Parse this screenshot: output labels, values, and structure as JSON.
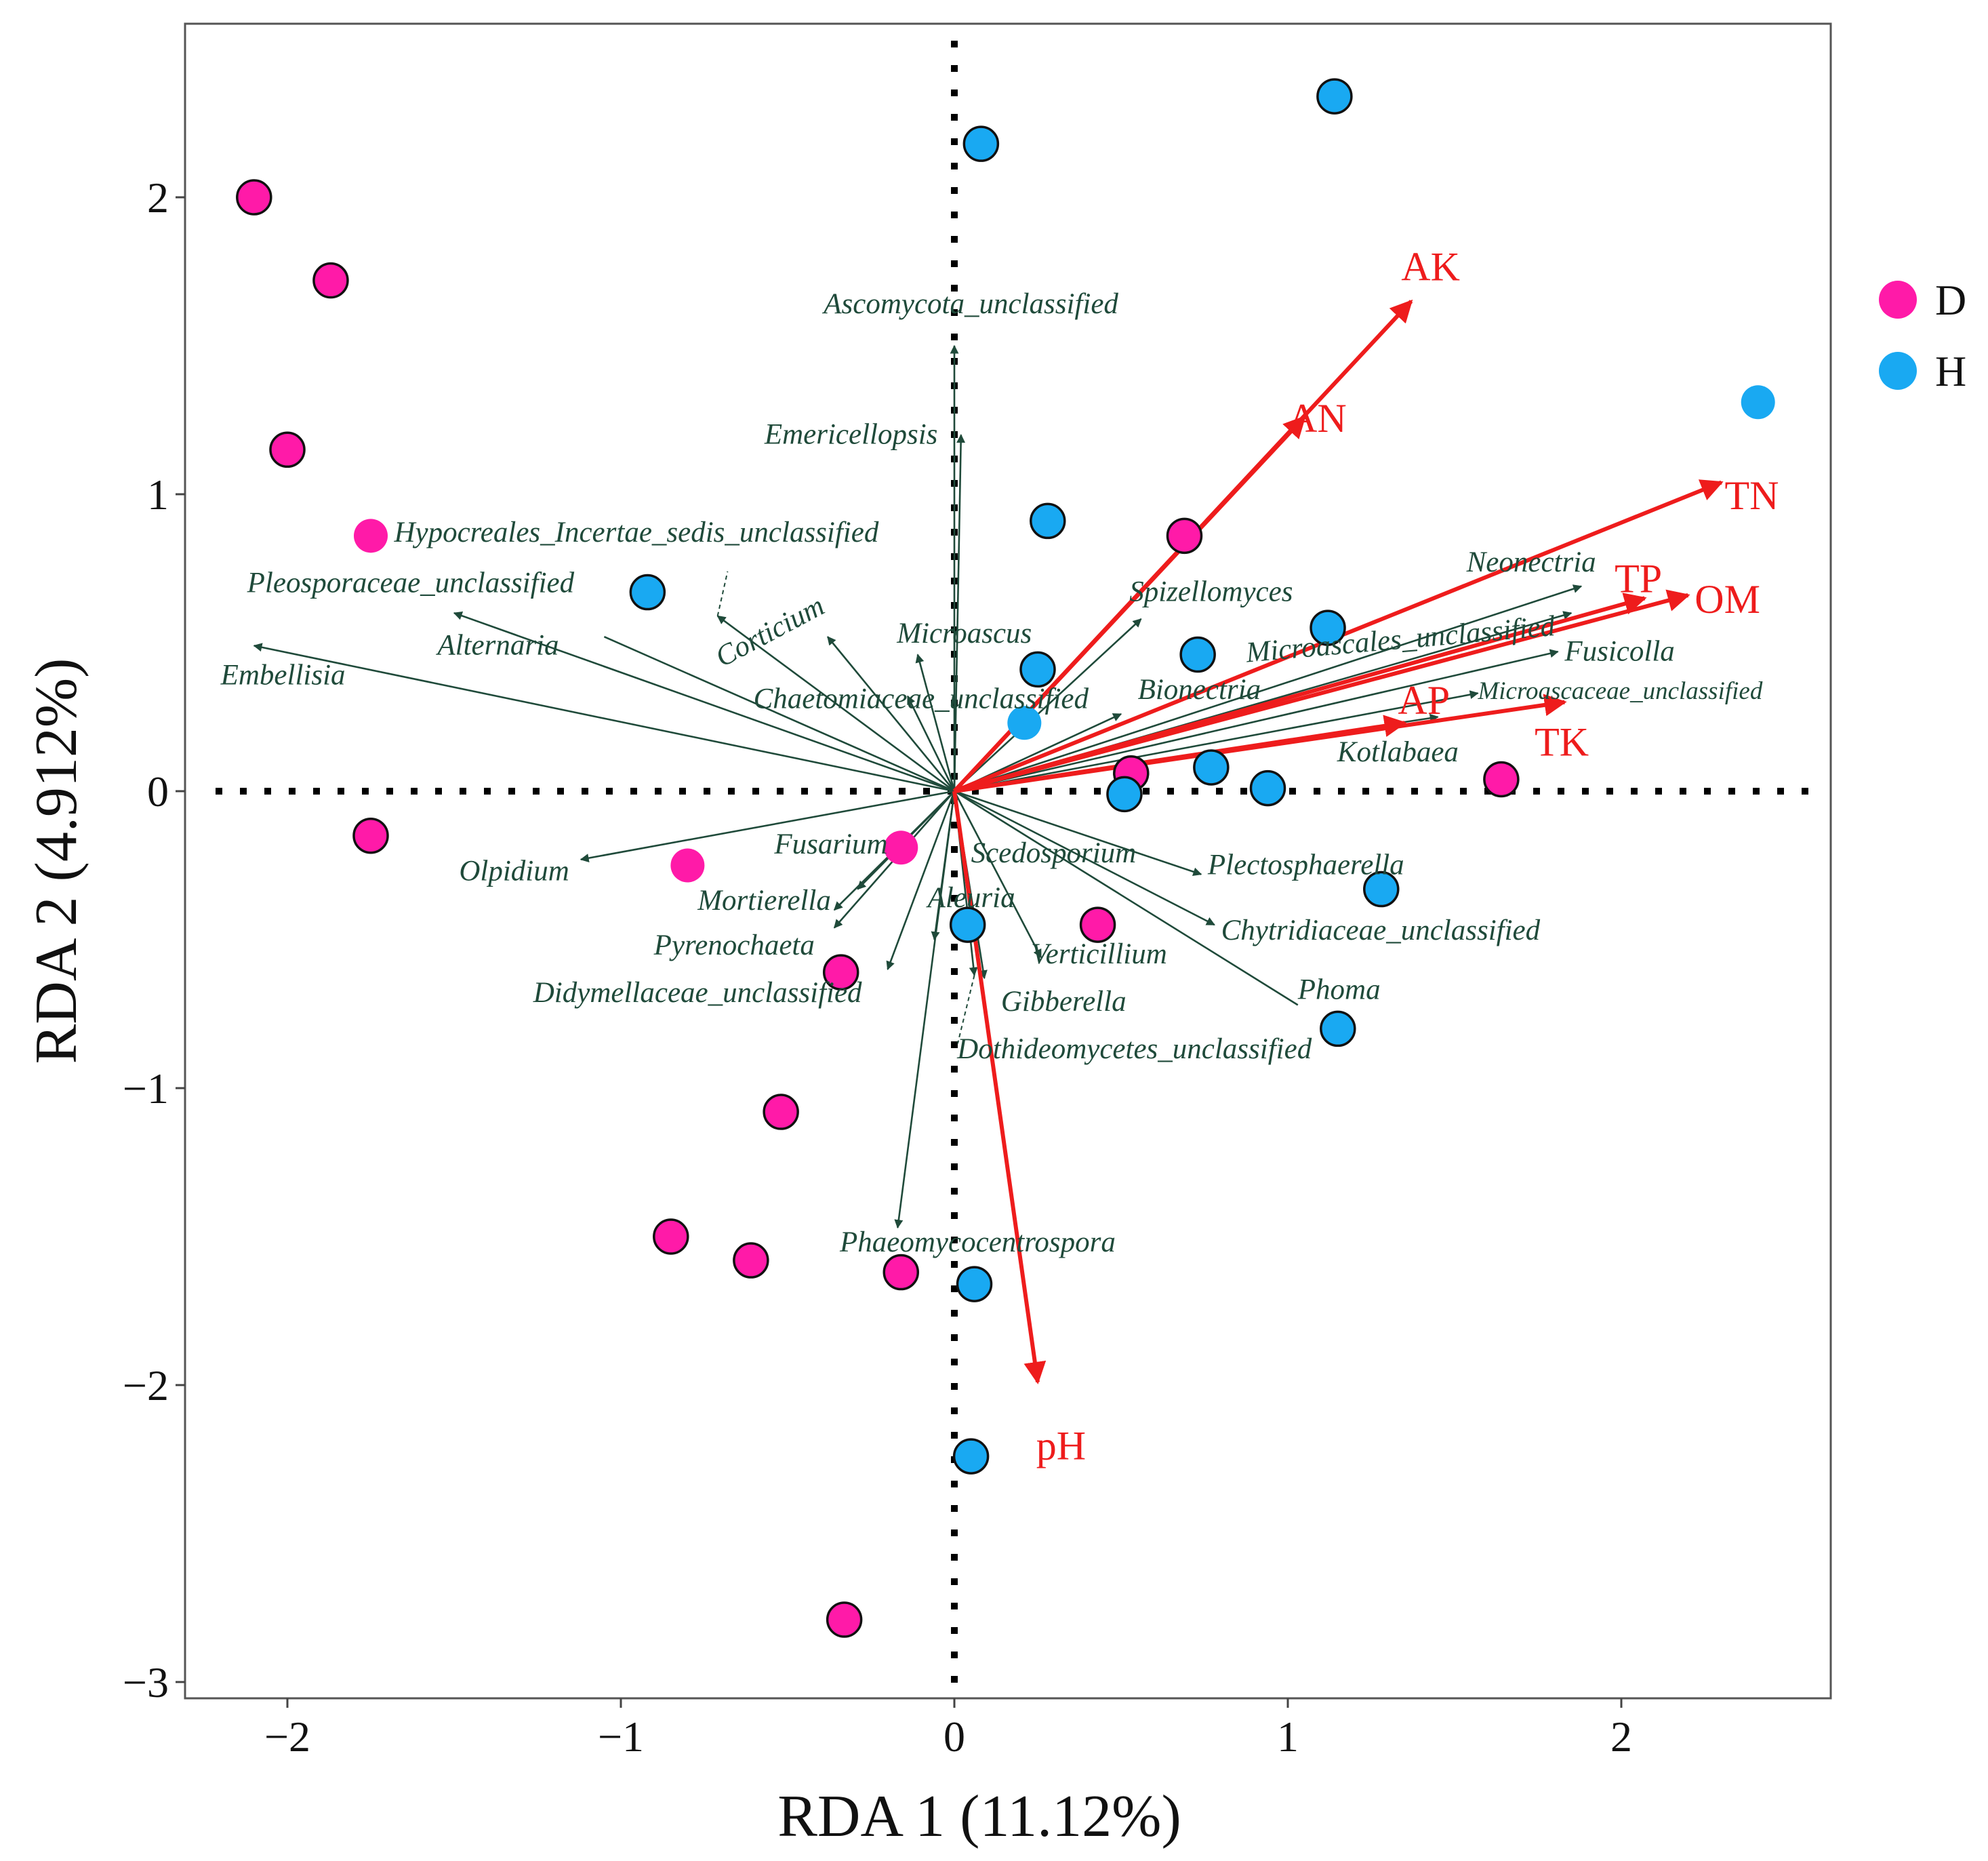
{
  "chart_data": {
    "type": "scatter",
    "subtype": "rda-biplot",
    "title": "",
    "xlabel": "RDA 1 (11.12%)",
    "ylabel": "RDA 2 (4.912%)",
    "xlim": [
      -2.32,
      2.6
    ],
    "ylim": [
      -3.05,
      2.6
    ],
    "xticks": [
      -2,
      -1,
      0,
      1,
      2
    ],
    "yticks": [
      -3,
      -2,
      -1,
      0,
      1,
      2
    ],
    "xtick_labels": [
      "−2",
      "−1",
      "0",
      "1",
      "2"
    ],
    "ytick_labels": [
      "−3",
      "−2",
      "−1",
      "0",
      "1",
      "2"
    ],
    "legend": [
      {
        "label": "D",
        "color": "#ff1aa8"
      },
      {
        "label": "H",
        "color": "#19a9f2"
      }
    ],
    "series": [
      {
        "name": "D",
        "color": "#ff1aa8",
        "points": [
          {
            "x": -2.1,
            "y": 2.0,
            "outlined": true
          },
          {
            "x": -1.87,
            "y": 1.72,
            "outlined": true
          },
          {
            "x": -2.0,
            "y": 1.15,
            "outlined": true
          },
          {
            "x": -1.75,
            "y": 0.86,
            "outlined": false
          },
          {
            "x": -1.75,
            "y": -0.15,
            "outlined": true
          },
          {
            "x": -0.8,
            "y": -0.25,
            "outlined": false
          },
          {
            "x": -0.16,
            "y": -0.19,
            "outlined": false
          },
          {
            "x": -0.34,
            "y": -0.61,
            "outlined": true
          },
          {
            "x": -0.52,
            "y": -1.08,
            "outlined": true
          },
          {
            "x": -0.85,
            "y": -1.5,
            "outlined": true
          },
          {
            "x": -0.61,
            "y": -1.58,
            "outlined": true
          },
          {
            "x": -0.16,
            "y": -1.62,
            "outlined": true
          },
          {
            "x": -0.33,
            "y": -2.79,
            "outlined": true
          },
          {
            "x": 0.69,
            "y": 0.86,
            "outlined": true
          },
          {
            "x": 0.53,
            "y": 0.06,
            "outlined": true
          },
          {
            "x": 0.43,
            "y": -0.45,
            "outlined": true
          },
          {
            "x": 1.64,
            "y": 0.04,
            "outlined": true
          }
        ]
      },
      {
        "name": "H",
        "color": "#19a9f2",
        "points": [
          {
            "x": 1.14,
            "y": 2.34,
            "outlined": true
          },
          {
            "x": 0.08,
            "y": 2.18,
            "outlined": true
          },
          {
            "x": 2.41,
            "y": 1.31,
            "outlined": false
          },
          {
            "x": 0.28,
            "y": 0.91,
            "outlined": true
          },
          {
            "x": -0.92,
            "y": 0.67,
            "outlined": true
          },
          {
            "x": 1.12,
            "y": 0.55,
            "outlined": true
          },
          {
            "x": 0.73,
            "y": 0.46,
            "outlined": true
          },
          {
            "x": 0.25,
            "y": 0.41,
            "outlined": true
          },
          {
            "x": 0.21,
            "y": 0.23,
            "outlined": false
          },
          {
            "x": 0.77,
            "y": 0.08,
            "outlined": true
          },
          {
            "x": 0.51,
            "y": -0.01,
            "outlined": true
          },
          {
            "x": 0.94,
            "y": 0.01,
            "outlined": true
          },
          {
            "x": 1.28,
            "y": -0.33,
            "outlined": true
          },
          {
            "x": 0.04,
            "y": -0.45,
            "outlined": true
          },
          {
            "x": 1.15,
            "y": -0.8,
            "outlined": true
          },
          {
            "x": 0.06,
            "y": -1.66,
            "outlined": true
          },
          {
            "x": 0.05,
            "y": -2.24,
            "outlined": true
          }
        ]
      }
    ],
    "species_vectors": [
      {
        "name": "Ascomycota_unclassified",
        "x": 0.0,
        "y": 1.5,
        "lx": 0.05,
        "ly": 1.61,
        "anchor": "middle",
        "rot": 0
      },
      {
        "name": "Emericellopsis",
        "x": 0.02,
        "y": 1.2,
        "lx": -0.05,
        "ly": 1.17,
        "anchor": "end",
        "rot": 0
      },
      {
        "name": "Hypocreales_Incertae_sedis_unclassified",
        "x": -0.71,
        "y": 0.59,
        "lx": -1.68,
        "ly": 0.84,
        "anchor": "start",
        "rot": 0,
        "leader": {
          "x": -0.68,
          "y": 0.74
        }
      },
      {
        "name": "Pleosporaceae_unclassified",
        "x": -1.5,
        "y": 0.6,
        "lx": -1.14,
        "ly": 0.67,
        "anchor": "end",
        "rot": 0
      },
      {
        "name": "Alternaria",
        "x": -1.05,
        "y": 0.52,
        "lx": -1.55,
        "ly": 0.46,
        "anchor": "start",
        "rot": 0,
        "noarrow": true
      },
      {
        "name": "Embellisia",
        "x": -2.1,
        "y": 0.49,
        "lx": -2.2,
        "ly": 0.36,
        "anchor": "start",
        "rot": 0
      },
      {
        "name": "Corticium",
        "x": -0.38,
        "y": 0.52,
        "lx": -0.54,
        "ly": 0.51,
        "anchor": "middle",
        "rot": -28
      },
      {
        "name": "Microascus",
        "x": -0.11,
        "y": 0.46,
        "lx": 0.03,
        "ly": 0.5,
        "anchor": "middle",
        "rot": 0
      },
      {
        "name": "Chaetomiaceae_unclassified",
        "x": -0.14,
        "y": 0.32,
        "lx": -0.1,
        "ly": 0.28,
        "anchor": "middle",
        "rot": 0
      },
      {
        "name": "Spizellomyces",
        "x": 0.56,
        "y": 0.58,
        "lx": 0.77,
        "ly": 0.64,
        "anchor": "middle",
        "rot": 0
      },
      {
        "name": "Bionectria",
        "x": 0.5,
        "y": 0.26,
        "lx": 0.55,
        "ly": 0.31,
        "anchor": "start",
        "rot": 0
      },
      {
        "name": "Neonectria",
        "x": 1.88,
        "y": 0.69,
        "lx": 1.73,
        "ly": 0.74,
        "anchor": "middle",
        "rot": 0
      },
      {
        "name": "Microascales_unclassified",
        "x": 1.85,
        "y": 0.6,
        "lx": 1.34,
        "ly": 0.48,
        "anchor": "middle",
        "rot": -5
      },
      {
        "name": "Fusicolla",
        "x": 1.81,
        "y": 0.47,
        "lx": 1.83,
        "ly": 0.44,
        "anchor": "start",
        "rot": 0
      },
      {
        "name": "Microascaceae_unclassified",
        "x": 1.57,
        "y": 0.33,
        "lx": 1.57,
        "ly": 0.31,
        "anchor": "start",
        "rot": 0,
        "small": true
      },
      {
        "name": "Kotlabaea",
        "x": 1.45,
        "y": 0.25,
        "lx": 1.33,
        "ly": 0.1,
        "anchor": "middle",
        "rot": 0
      },
      {
        "name": "Olpidium",
        "x": -1.12,
        "y": -0.23,
        "lx": -1.32,
        "ly": -0.3,
        "anchor": "middle",
        "rot": 0
      },
      {
        "name": "Fusarium",
        "x": -0.29,
        "y": -0.33,
        "lx": -0.2,
        "ly": -0.21,
        "anchor": "end",
        "rot": 0
      },
      {
        "name": "Mortierella",
        "x": -0.36,
        "y": -0.4,
        "lx": -0.57,
        "ly": -0.4,
        "anchor": "middle",
        "rot": 0
      },
      {
        "name": "Pyrenochaeta",
        "x": -0.36,
        "y": -0.46,
        "lx": -0.66,
        "ly": -0.55,
        "anchor": "middle",
        "rot": 0
      },
      {
        "name": "Didymellaceae_unclassified",
        "x": -0.2,
        "y": -0.6,
        "lx": -0.77,
        "ly": -0.71,
        "anchor": "middle",
        "rot": 0
      },
      {
        "name": "Aleuria",
        "x": -0.06,
        "y": -0.5,
        "lx": -0.08,
        "ly": -0.39,
        "anchor": "start",
        "rot": 0
      },
      {
        "name": "Scedosporium",
        "x": 0.03,
        "y": -0.24,
        "lx": 0.05,
        "ly": -0.24,
        "anchor": "start",
        "rot": 0,
        "noarrow": true
      },
      {
        "name": "Verticillium",
        "x": 0.26,
        "y": -0.56,
        "lx": 0.23,
        "ly": -0.58,
        "anchor": "start",
        "rot": 0
      },
      {
        "name": "Gibberella",
        "x": 0.09,
        "y": -0.63,
        "lx": 0.14,
        "ly": -0.74,
        "anchor": "start",
        "rot": 0
      },
      {
        "name": "Dothideomycetes_unclassified",
        "x": 0.06,
        "y": -0.62,
        "lx": 0.54,
        "ly": -0.9,
        "anchor": "middle",
        "rot": 0,
        "leader": {
          "x": 0.01,
          "y": -0.85
        }
      },
      {
        "name": "Plectosphaerella",
        "x": 0.74,
        "y": -0.28,
        "lx": 0.76,
        "ly": -0.28,
        "anchor": "start",
        "rot": 0
      },
      {
        "name": "Chytridiaceae_unclassified",
        "x": 0.78,
        "y": -0.45,
        "lx": 0.8,
        "ly": -0.5,
        "anchor": "start",
        "rot": 0
      },
      {
        "name": "Phoma",
        "x": 1.03,
        "y": -0.72,
        "lx": 1.03,
        "ly": -0.7,
        "anchor": "start",
        "rot": 0,
        "noarrow": true
      },
      {
        "name": "Phaeomycocentrospora",
        "x": -0.17,
        "y": -1.47,
        "lx": 0.07,
        "ly": -1.55,
        "anchor": "middle",
        "rot": 0
      }
    ],
    "env_vectors": [
      {
        "name": "AK",
        "x": 1.37,
        "y": 1.65,
        "lx": 1.34,
        "ly": 1.72,
        "anchor": "start"
      },
      {
        "name": "AN",
        "x": 1.05,
        "y": 1.26,
        "lx": 1.0,
        "ly": 1.21,
        "anchor": "start"
      },
      {
        "name": "TN",
        "x": 2.3,
        "y": 1.04,
        "lx": 2.31,
        "ly": 0.95,
        "anchor": "start"
      },
      {
        "name": "TP",
        "x": 2.07,
        "y": 0.65,
        "lx": 1.98,
        "ly": 0.67,
        "anchor": "start"
      },
      {
        "name": "OM",
        "x": 2.2,
        "y": 0.66,
        "lx": 2.22,
        "ly": 0.6,
        "anchor": "start"
      },
      {
        "name": "AP",
        "x": 1.35,
        "y": 0.23,
        "lx": 1.33,
        "ly": 0.26,
        "anchor": "start"
      },
      {
        "name": "TK",
        "x": 1.83,
        "y": 0.3,
        "lx": 1.74,
        "ly": 0.12,
        "anchor": "start"
      },
      {
        "name": "pH",
        "x": 0.25,
        "y": -1.99,
        "lx": 0.32,
        "ly": -2.25,
        "anchor": "middle"
      }
    ]
  }
}
